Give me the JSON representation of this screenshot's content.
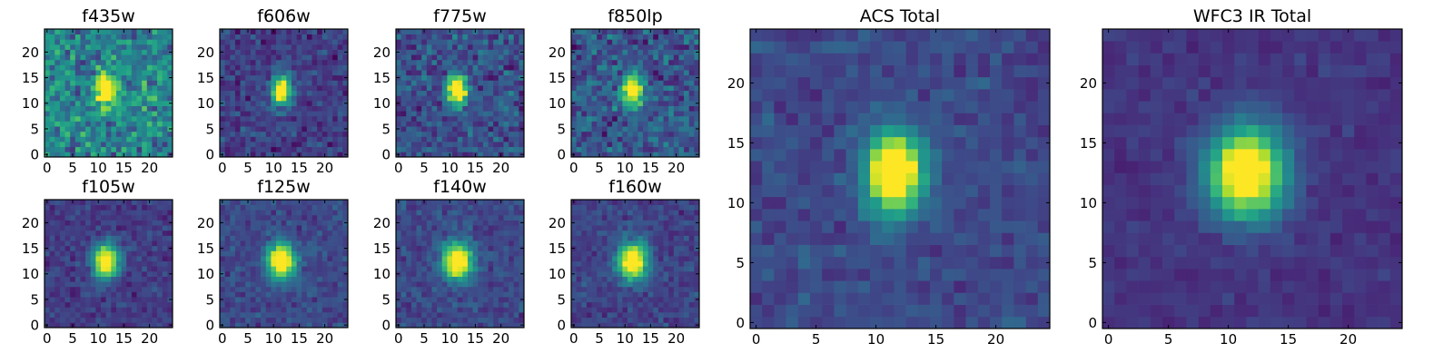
{
  "figure": {
    "colormap": "viridis",
    "colors": {
      "low": "#440154",
      "mid": "#21918c",
      "high": "#fde725",
      "axes": "#000000",
      "background": "#ffffff"
    }
  },
  "chart_data": [
    {
      "type": "heatmap",
      "id": "f435w",
      "title": "f435w",
      "grid_size": 25,
      "xticks": [
        0,
        5,
        10,
        15,
        20
      ],
      "yticks": [
        0,
        5,
        10,
        15,
        20
      ],
      "xlim": [
        -0.5,
        24.5
      ],
      "ylim": [
        -0.5,
        24.5
      ],
      "source_peak": [
        11.5,
        12.5
      ],
      "source_sigma": [
        1.3,
        2.0
      ],
      "background_level": 0.45,
      "noise": 0.24,
      "vmax": 1.0
    },
    {
      "type": "heatmap",
      "id": "f606w",
      "title": "f606w",
      "grid_size": 25,
      "xticks": [
        0,
        5,
        10,
        15,
        20
      ],
      "yticks": [
        0,
        5,
        10,
        15,
        20
      ],
      "xlim": [
        -0.5,
        24.5
      ],
      "ylim": [
        -0.5,
        24.5
      ],
      "source_peak": [
        11.5,
        12.5
      ],
      "source_sigma": [
        1.3,
        2.0
      ],
      "background_level": 0.18,
      "noise": 0.14,
      "vmax": 1.0
    },
    {
      "type": "heatmap",
      "id": "f775w",
      "title": "f775w",
      "grid_size": 25,
      "xticks": [
        0,
        5,
        10,
        15,
        20
      ],
      "yticks": [
        0,
        5,
        10,
        15,
        20
      ],
      "xlim": [
        -0.5,
        24.5
      ],
      "ylim": [
        -0.5,
        24.5
      ],
      "source_peak": [
        11.5,
        12.5
      ],
      "source_sigma": [
        1.4,
        2.0
      ],
      "background_level": 0.25,
      "noise": 0.18,
      "vmax": 1.0
    },
    {
      "type": "heatmap",
      "id": "f850lp",
      "title": "f850lp",
      "grid_size": 25,
      "xticks": [
        0,
        5,
        10,
        15,
        20
      ],
      "yticks": [
        0,
        5,
        10,
        15,
        20
      ],
      "xlim": [
        -0.5,
        24.5
      ],
      "ylim": [
        -0.5,
        24.5
      ],
      "source_peak": [
        11.5,
        12.5
      ],
      "source_sigma": [
        1.5,
        2.1
      ],
      "background_level": 0.27,
      "noise": 0.2,
      "vmax": 1.0
    },
    {
      "type": "heatmap",
      "id": "f105w",
      "title": "f105w",
      "grid_size": 25,
      "xticks": [
        0,
        5,
        10,
        15,
        20
      ],
      "yticks": [
        0,
        5,
        10,
        15,
        20
      ],
      "xlim": [
        -0.5,
        24.5
      ],
      "ylim": [
        -0.5,
        24.5
      ],
      "source_peak": [
        11.5,
        12.5
      ],
      "source_sigma": [
        1.7,
        2.3
      ],
      "background_level": 0.18,
      "noise": 0.1,
      "vmax": 1.0
    },
    {
      "type": "heatmap",
      "id": "f125w",
      "title": "f125w",
      "grid_size": 25,
      "xticks": [
        0,
        5,
        10,
        15,
        20
      ],
      "yticks": [
        0,
        5,
        10,
        15,
        20
      ],
      "xlim": [
        -0.5,
        24.5
      ],
      "ylim": [
        -0.5,
        24.5
      ],
      "source_peak": [
        11.5,
        12.5
      ],
      "source_sigma": [
        1.9,
        2.4
      ],
      "background_level": 0.22,
      "noise": 0.1,
      "vmax": 1.0
    },
    {
      "type": "heatmap",
      "id": "f140w",
      "title": "f140w",
      "grid_size": 25,
      "xticks": [
        0,
        5,
        10,
        15,
        20
      ],
      "yticks": [
        0,
        5,
        10,
        15,
        20
      ],
      "xlim": [
        -0.5,
        24.5
      ],
      "ylim": [
        -0.5,
        24.5
      ],
      "source_peak": [
        11.5,
        12.5
      ],
      "source_sigma": [
        2.0,
        2.5
      ],
      "background_level": 0.22,
      "noise": 0.1,
      "vmax": 1.0
    },
    {
      "type": "heatmap",
      "id": "f160w",
      "title": "f160w",
      "grid_size": 25,
      "xticks": [
        0,
        5,
        10,
        15,
        20
      ],
      "yticks": [
        0,
        5,
        10,
        15,
        20
      ],
      "xlim": [
        -0.5,
        24.5
      ],
      "ylim": [
        -0.5,
        24.5
      ],
      "source_peak": [
        11.5,
        12.5
      ],
      "source_sigma": [
        2.0,
        2.5
      ],
      "background_level": 0.2,
      "noise": 0.1,
      "vmax": 1.0
    },
    {
      "type": "heatmap",
      "id": "acs-total",
      "title": "ACS Total",
      "grid_size": 25,
      "xticks": [
        0,
        5,
        10,
        15,
        20
      ],
      "yticks": [
        0,
        5,
        10,
        15,
        20
      ],
      "xlim": [
        -0.5,
        24.5
      ],
      "ylim": [
        -0.5,
        24.5
      ],
      "source_peak": [
        11.5,
        12.5
      ],
      "source_sigma": [
        1.6,
        2.3
      ],
      "background_level": 0.2,
      "noise": 0.08,
      "vmax": 0.9
    },
    {
      "type": "heatmap",
      "id": "wfc3-ir-total",
      "title": "WFC3 IR Total",
      "grid_size": 25,
      "xticks": [
        0,
        5,
        10,
        15,
        20
      ],
      "yticks": [
        0,
        5,
        10,
        15,
        20
      ],
      "xlim": [
        -0.5,
        24.5
      ],
      "ylim": [
        -0.5,
        24.5
      ],
      "source_peak": [
        11.5,
        12.5
      ],
      "source_sigma": [
        2.2,
        2.6
      ],
      "background_level": 0.14,
      "noise": 0.05,
      "vmax": 0.92
    }
  ]
}
